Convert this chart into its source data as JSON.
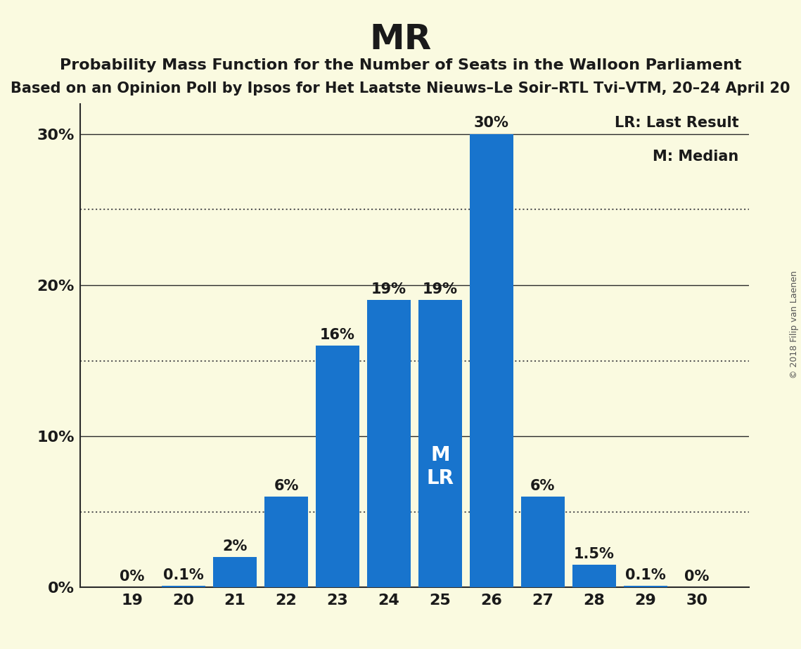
{
  "title": "MR",
  "subtitle": "Probability Mass Function for the Number of Seats in the Walloon Parliament",
  "subtitle2": "Based on an Opinion Poll by Ipsos for Het Laatste Nieuws–Le Soir–RTL Tvi–VTM, 20–24 April 20",
  "copyright": "© 2018 Filip van Laenen",
  "seats": [
    19,
    20,
    21,
    22,
    23,
    24,
    25,
    26,
    27,
    28,
    29,
    30
  ],
  "values": [
    0.0,
    0.1,
    2.0,
    6.0,
    16.0,
    19.0,
    19.0,
    30.0,
    6.0,
    1.5,
    0.1,
    0.0
  ],
  "labels": [
    "0%",
    "0.1%",
    "2%",
    "6%",
    "16%",
    "19%",
    "19%",
    "30%",
    "6%",
    "1.5%",
    "0.1%",
    "0%"
  ],
  "bar_color": "#1874CD",
  "background_color": "#FAFAE0",
  "median_seat": 25,
  "lr_seat": 25,
  "median_label": "M",
  "lr_label": "LR",
  "legend_lr": "LR: Last Result",
  "legend_m": "M: Median",
  "ylim": [
    0,
    32
  ],
  "yticks_labeled": [
    0,
    10,
    20,
    30
  ],
  "ytick_labels": [
    "0%",
    "10%",
    "20%",
    "30%"
  ],
  "solid_lines": [
    10,
    20,
    30
  ],
  "dotted_lines": [
    5,
    15,
    25
  ],
  "title_fontsize": 36,
  "subtitle_fontsize": 16,
  "subtitle2_fontsize": 15,
  "bar_label_fontsize": 15,
  "axis_label_fontsize": 16,
  "inside_label_fontsize": 20,
  "legend_fontsize": 15
}
